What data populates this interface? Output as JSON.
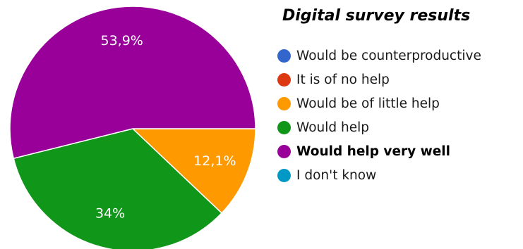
{
  "chart_data": {
    "type": "pie",
    "title": "Digital survey results",
    "legend_position": "right",
    "slices": [
      {
        "label": "Would be counterproductive",
        "value": 0,
        "color": "#3366cc",
        "display": ""
      },
      {
        "label": "It is of no help",
        "value": 0,
        "color": "#dc3912",
        "display": ""
      },
      {
        "label": "Would be of little help",
        "value": 12.1,
        "color": "#ff9900",
        "display": "12,1%"
      },
      {
        "label": "Would help",
        "value": 34.0,
        "color": "#109618",
        "display": "34%"
      },
      {
        "label": "Would help very well",
        "value": 53.9,
        "color": "#990099",
        "display": "53,9%",
        "bold": true
      },
      {
        "label": "I don't know",
        "value": 0,
        "color": "#0099c6",
        "display": ""
      }
    ]
  }
}
